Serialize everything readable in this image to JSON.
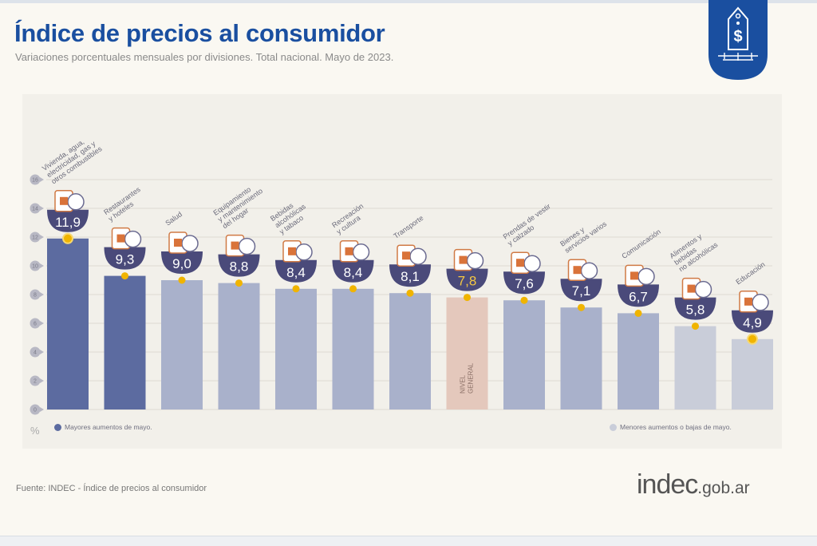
{
  "header": {
    "title": "Índice de precios al consumidor",
    "subtitle": "Variaciones porcentuales mensuales por divisiones. Total nacional. Mayo de 2023."
  },
  "logo": {
    "icon": "price-tag-dollar-icon",
    "color": "#1a4fa0"
  },
  "colors": {
    "highest": "#5c6ba0",
    "mid": "#a9b1cb",
    "lowest": "#c9cdd9",
    "general": "#e4c8bc",
    "bowl": "#4a4a7a",
    "dot": "#f0b400",
    "general_value": "#f5c842"
  },
  "chart_data": {
    "type": "bar",
    "title": "Índice de precios al consumidor",
    "subtitle": "Variaciones porcentuales mensuales por divisiones. Total nacional. Mayo de 2023.",
    "xlabel": "",
    "ylabel": "%",
    "ylim": [
      0,
      16
    ],
    "yticks": [
      0,
      2,
      4,
      6,
      8,
      10,
      12,
      14,
      16
    ],
    "grid": true,
    "categories": [
      "Vivienda, agua, electricidad, gas y otros combustibles",
      "Restaurantes y hoteles",
      "Salud",
      "Equipamiento y mantenimiento del hogar",
      "Bebidas alcohólicas y tabaco",
      "Recreación y cultura",
      "Transporte",
      "Nivel general",
      "Prendas de vestir y calzado",
      "Bienes y servicios varios",
      "Comunicación",
      "Alimentos y bebidas no alcohólicas",
      "Educación"
    ],
    "values": [
      11.9,
      9.3,
      9.0,
      8.8,
      8.4,
      8.4,
      8.1,
      7.8,
      7.6,
      7.1,
      6.7,
      5.8,
      4.9
    ],
    "value_labels": [
      "11,9",
      "9,3",
      "9,0",
      "8,8",
      "8,4",
      "8,4",
      "8,1",
      "7,8",
      "7,6",
      "7,1",
      "6,7",
      "5,8",
      "4,9"
    ],
    "groups": [
      "highest",
      "highest",
      "mid",
      "mid",
      "mid",
      "mid",
      "mid",
      "general",
      "mid",
      "mid",
      "mid",
      "lowest",
      "lowest"
    ],
    "label_lines": [
      [
        "Vivienda, agua,",
        "electricidad, gas y",
        "otros combustibles"
      ],
      [
        "Restaurantes",
        "y hoteles"
      ],
      [
        "Salud"
      ],
      [
        "Equipamiento",
        "y mantenimiento",
        "del hogar"
      ],
      [
        "Bebidas",
        "alcohólicas",
        "y tabaco"
      ],
      [
        "Recreación",
        "y cultura"
      ],
      [
        "Transporte"
      ],
      [],
      [
        "Prendas de vestir",
        "y calzado"
      ],
      [
        "Bienes y",
        "servicios varios"
      ],
      [
        "Comunicación"
      ],
      [
        "Alimentos y",
        "bebidas",
        "no alcohólicas"
      ],
      [
        "Educación"
      ]
    ],
    "icons": [
      "tools-lightbulb-icon",
      "plate-cutlery-icon",
      "first-aid-icon",
      "washing-machine-icon",
      "wine-bottle-icon",
      "beach-umbrella-icon",
      "car-icon",
      "shopping-basket-icon",
      "tshirt-icon",
      "hair-tools-icon",
      "smartphone-icon",
      "grocery-icon",
      "notebook-icon"
    ],
    "general_bar_label": [
      "NIVEL",
      "GENERAL"
    ],
    "legend": [
      {
        "label": "Mayores aumentos de mayo.",
        "group": "highest",
        "position": "bottom-left"
      },
      {
        "label": "Menores aumentos o bajas de mayo.",
        "group": "lowest",
        "position": "bottom-right"
      }
    ]
  },
  "footer": {
    "source": "Fuente: INDEC - Índice de precios al consumidor",
    "brand_main": "indec",
    "brand_suffix": ".gob.ar"
  }
}
